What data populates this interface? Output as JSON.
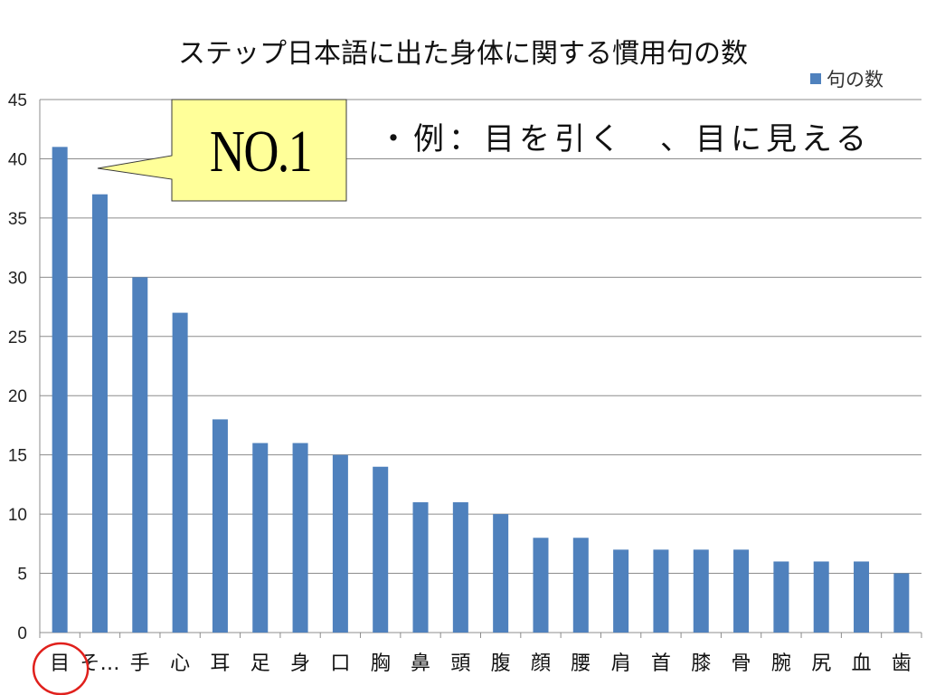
{
  "chart_data": {
    "type": "bar",
    "title": "ステップ日本語に出た身体に関する慣用句の数",
    "categories": [
      "目",
      "そ…",
      "手",
      "心",
      "耳",
      "足",
      "身",
      "口",
      "胸",
      "鼻",
      "頭",
      "腹",
      "顔",
      "腰",
      "肩",
      "首",
      "膝",
      "骨",
      "腕",
      "尻",
      "血",
      "歯"
    ],
    "series": [
      {
        "name": "句の数",
        "values": [
          41,
          37,
          30,
          27,
          18,
          16,
          16,
          15,
          14,
          11,
          11,
          10,
          8,
          8,
          7,
          7,
          7,
          7,
          6,
          6,
          6,
          5
        ]
      }
    ],
    "ylim": [
      0,
      45
    ],
    "yticks": [
      0,
      5,
      10,
      15,
      20,
      25,
      30,
      35,
      40,
      45
    ],
    "grid": true,
    "legend_placement": "top-right",
    "bar_color": "#4f81bd",
    "highlight_category": "目"
  },
  "annotations": {
    "callout": "NO.1",
    "callout_color": "#ffff99",
    "example": "・例：目を引く　、目に見える",
    "circle_color": "#e0201c"
  }
}
